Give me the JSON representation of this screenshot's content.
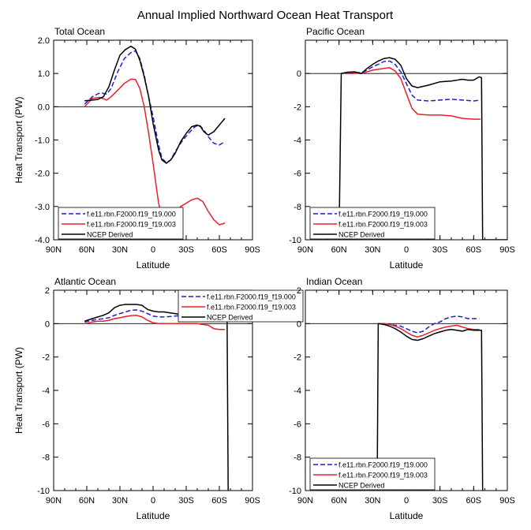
{
  "figure_title": "Annual Implied Northward Ocean Heat Transport",
  "legend_entries": [
    {
      "label": "f.e11.rbn.F2000.f19_f19.000",
      "color": "#1f1fcc",
      "dash": true
    },
    {
      "label": "f.e11.rbn.F2000.f19_f19.003",
      "color": "#e8202a",
      "dash": false
    },
    {
      "label": "NCEP Derived",
      "color": "#000000",
      "dash": false
    }
  ],
  "chart_data": [
    {
      "type": "line",
      "title": "Total Ocean",
      "xlabel": "Latitude",
      "ylabel": "Heat Transport (PW)",
      "xlim": [
        90,
        -90
      ],
      "ylim": [
        -4,
        2
      ],
      "x_ticks": [
        "90N",
        "60N",
        "30N",
        "0",
        "30S",
        "60S",
        "90S"
      ],
      "y_ticks": [
        "2.0",
        "1.0",
        "0.0",
        "-1.0",
        "-2.0",
        "-3.0",
        "-4.0"
      ],
      "legend": "bottom-left",
      "series": [
        {
          "name": "f.e11.rbn.F2000.f19_f19.000",
          "x": [
            62,
            55,
            48,
            42,
            38,
            32,
            26,
            20,
            16,
            12,
            8,
            4,
            0,
            -5,
            -8,
            -12,
            -16,
            -20,
            -26,
            -32,
            -38,
            -42,
            -46,
            -50,
            -55,
            -60,
            -65
          ],
          "y": [
            0.08,
            0.3,
            0.42,
            0.38,
            0.55,
            1.05,
            1.45,
            1.63,
            1.68,
            1.45,
            0.95,
            0.3,
            -0.3,
            -1.15,
            -1.55,
            -1.68,
            -1.6,
            -1.35,
            -1.05,
            -0.8,
            -0.6,
            -0.55,
            -0.7,
            -0.9,
            -1.1,
            -1.15,
            -1.05
          ]
        },
        {
          "name": "f.e11.rbn.F2000.f19_f19.003",
          "x": [
            62,
            55,
            48,
            42,
            38,
            32,
            26,
            20,
            16,
            12,
            8,
            4,
            0,
            -5,
            -8,
            -10,
            -15,
            -20,
            -25,
            -30,
            -35,
            -40,
            -45,
            -50,
            -55,
            -60,
            -65
          ],
          "y": [
            0.0,
            0.25,
            0.28,
            0.2,
            0.3,
            0.5,
            0.7,
            0.83,
            0.82,
            0.55,
            0.0,
            -0.8,
            -1.7,
            -2.9,
            -3.3,
            -3.42,
            -3.45,
            -3.3,
            -3.0,
            -2.9,
            -2.8,
            -2.75,
            -2.85,
            -3.15,
            -3.4,
            -3.55,
            -3.5
          ]
        },
        {
          "name": "NCEP Derived",
          "x": [
            62,
            55,
            50,
            45,
            40,
            35,
            30,
            25,
            20,
            16,
            12,
            8,
            4,
            0,
            -5,
            -8,
            -12,
            -16,
            -20,
            -25,
            -30,
            -35,
            -40,
            -43,
            -46,
            -50,
            -55,
            -60,
            -65
          ],
          "y": [
            0.18,
            0.2,
            0.22,
            0.3,
            0.6,
            1.1,
            1.55,
            1.72,
            1.82,
            1.73,
            1.4,
            0.9,
            0.3,
            -0.5,
            -1.3,
            -1.6,
            -1.7,
            -1.6,
            -1.4,
            -1.05,
            -0.8,
            -0.6,
            -0.55,
            -0.6,
            -0.75,
            -0.85,
            -0.75,
            -0.55,
            -0.35
          ]
        }
      ]
    },
    {
      "type": "line",
      "title": "Pacific Ocean",
      "xlabel": "Latitude",
      "ylabel": "",
      "xlim": [
        90,
        -90
      ],
      "ylim": [
        -10,
        2
      ],
      "x_ticks": [
        "90N",
        "60N",
        "30N",
        "0",
        "30S",
        "60S",
        "90S"
      ],
      "y_ticks": [
        "0",
        "-2",
        "-4",
        "-6",
        "-8",
        "-10"
      ],
      "legend": "bottom-left",
      "series": [
        {
          "name": "f.e11.rbn.F2000.f19_f19.000",
          "x": [
            58,
            52,
            46,
            40,
            35,
            30,
            25,
            20,
            15,
            10,
            5,
            0,
            -5,
            -10,
            -20,
            -30,
            -40,
            -50,
            -60,
            -66
          ],
          "y": [
            0.0,
            0.08,
            0.05,
            0.05,
            0.2,
            0.4,
            0.55,
            0.72,
            0.75,
            0.55,
            0.1,
            -0.6,
            -1.3,
            -1.6,
            -1.65,
            -1.6,
            -1.55,
            -1.6,
            -1.65,
            -1.6
          ]
        },
        {
          "name": "f.e11.rbn.F2000.f19_f19.003",
          "x": [
            58,
            52,
            46,
            40,
            35,
            30,
            25,
            20,
            15,
            10,
            5,
            0,
            -5,
            -10,
            -20,
            -30,
            -40,
            -50,
            -60,
            -66
          ],
          "y": [
            0.0,
            0.06,
            0.03,
            0.0,
            0.1,
            0.2,
            0.25,
            0.3,
            0.35,
            0.15,
            -0.3,
            -1.2,
            -2.1,
            -2.45,
            -2.5,
            -2.5,
            -2.55,
            -2.7,
            -2.75,
            -2.75
          ]
        },
        {
          "name": "NCEP Derived",
          "x": [
            60,
            58,
            52,
            46,
            40,
            35,
            30,
            25,
            20,
            15,
            10,
            5,
            0,
            -5,
            -10,
            -20,
            -30,
            -40,
            -50,
            -55,
            -60,
            -65,
            -67,
            -68,
            -90
          ],
          "y": [
            -10,
            0.0,
            0.08,
            0.1,
            0.0,
            0.3,
            0.55,
            0.75,
            0.9,
            0.95,
            0.85,
            0.5,
            -0.3,
            -0.75,
            -0.85,
            -0.7,
            -0.5,
            -0.45,
            -0.35,
            -0.4,
            -0.4,
            -0.2,
            -0.25,
            -10,
            -10
          ]
        }
      ]
    },
    {
      "type": "line",
      "title": "Atlantic Ocean",
      "xlabel": "Latitude",
      "ylabel": "Heat Transport (PW)",
      "xlim": [
        90,
        -90
      ],
      "ylim": [
        -10,
        2
      ],
      "x_ticks": [
        "90N",
        "60N",
        "30N",
        "0",
        "30S",
        "60S",
        "90S"
      ],
      "y_ticks": [
        "2",
        "0",
        "-2",
        "-4",
        "-6",
        "-8",
        "-10"
      ],
      "legend": "top-right",
      "series": [
        {
          "name": "f.e11.rbn.F2000.f19_f19.000",
          "x": [
            62,
            55,
            50,
            45,
            40,
            35,
            30,
            25,
            20,
            15,
            10,
            5,
            0,
            -5,
            -10,
            -15,
            -20,
            -25,
            -30,
            -35,
            -40,
            -45,
            -50,
            -55,
            -60,
            -65
          ],
          "y": [
            0.1,
            0.2,
            0.25,
            0.3,
            0.35,
            0.5,
            0.6,
            0.7,
            0.8,
            0.82,
            0.75,
            0.6,
            0.45,
            0.4,
            0.4,
            0.42,
            0.45,
            0.48,
            0.5,
            0.52,
            0.55,
            0.5,
            0.45,
            0.35,
            0.3,
            0.3
          ]
        },
        {
          "name": "f.e11.rbn.F2000.f19_f19.003",
          "x": [
            62,
            55,
            50,
            45,
            40,
            35,
            30,
            25,
            20,
            15,
            10,
            5,
            0,
            -5,
            -10,
            -15,
            -20,
            -25,
            -30,
            -35,
            -40,
            -45,
            -50,
            -55,
            -60,
            -65
          ],
          "y": [
            0.0,
            0.1,
            0.15,
            0.15,
            0.2,
            0.3,
            0.35,
            0.42,
            0.48,
            0.5,
            0.4,
            0.2,
            0.05,
            0.0,
            0.0,
            0.0,
            0.0,
            0.0,
            0.0,
            0.0,
            0.0,
            -0.05,
            -0.1,
            -0.3,
            -0.35,
            -0.35
          ]
        },
        {
          "name": "NCEP Derived",
          "x": [
            62,
            55,
            50,
            45,
            40,
            35,
            30,
            25,
            20,
            15,
            10,
            5,
            0,
            -5,
            -10,
            -15,
            -20,
            -25,
            -30,
            -35,
            -40,
            -45,
            -50,
            -55,
            -60,
            -65,
            -67,
            -68
          ],
          "y": [
            0.15,
            0.3,
            0.4,
            0.5,
            0.65,
            0.95,
            1.1,
            1.15,
            1.15,
            1.15,
            1.1,
            0.85,
            0.75,
            0.7,
            0.7,
            0.65,
            0.6,
            0.55,
            0.5,
            0.5,
            0.55,
            0.6,
            0.55,
            0.5,
            0.45,
            0.45,
            0.4,
            -10
          ]
        }
      ]
    },
    {
      "type": "line",
      "title": "Indian Ocean",
      "xlabel": "Latitude",
      "ylabel": "",
      "xlim": [
        90,
        -90
      ],
      "ylim": [
        -10,
        2
      ],
      "x_ticks": [
        "90N",
        "60N",
        "30N",
        "0",
        "30S",
        "60S",
        "90S"
      ],
      "y_ticks": [
        "2",
        "0",
        "-2",
        "-4",
        "-6",
        "-8",
        "-10"
      ],
      "legend": "bottom-left",
      "series": [
        {
          "name": "f.e11.rbn.F2000.f19_f19.000",
          "x": [
            25,
            20,
            15,
            10,
            5,
            0,
            -5,
            -10,
            -15,
            -20,
            -25,
            -30,
            -35,
            -40,
            -45,
            -50,
            -55,
            -60,
            -65
          ],
          "y": [
            0.0,
            0.0,
            -0.05,
            -0.1,
            -0.15,
            -0.3,
            -0.45,
            -0.55,
            -0.45,
            -0.2,
            0.0,
            0.1,
            0.3,
            0.4,
            0.45,
            0.4,
            0.3,
            0.3,
            0.3
          ]
        },
        {
          "name": "f.e11.rbn.F2000.f19_f19.003",
          "x": [
            25,
            20,
            15,
            10,
            5,
            0,
            -5,
            -10,
            -15,
            -20,
            -25,
            -30,
            -35,
            -40,
            -45,
            -50,
            -55,
            -60,
            -65
          ],
          "y": [
            0.0,
            0.0,
            -0.05,
            -0.15,
            -0.3,
            -0.5,
            -0.7,
            -0.8,
            -0.7,
            -0.55,
            -0.4,
            -0.3,
            -0.2,
            -0.15,
            -0.1,
            -0.2,
            -0.3,
            -0.35,
            -0.35
          ]
        },
        {
          "name": "NCEP Derived",
          "x": [
            26,
            25,
            20,
            15,
            10,
            5,
            0,
            -5,
            -10,
            -15,
            -20,
            -25,
            -30,
            -35,
            -40,
            -45,
            -50,
            -55,
            -60,
            -65,
            -67,
            -68
          ],
          "y": [
            -10,
            0.0,
            -0.05,
            -0.15,
            -0.3,
            -0.5,
            -0.75,
            -0.95,
            -1.0,
            -0.9,
            -0.75,
            -0.6,
            -0.5,
            -0.4,
            -0.35,
            -0.4,
            -0.45,
            -0.35,
            -0.4,
            -0.4,
            -0.4,
            -10
          ]
        }
      ]
    }
  ]
}
